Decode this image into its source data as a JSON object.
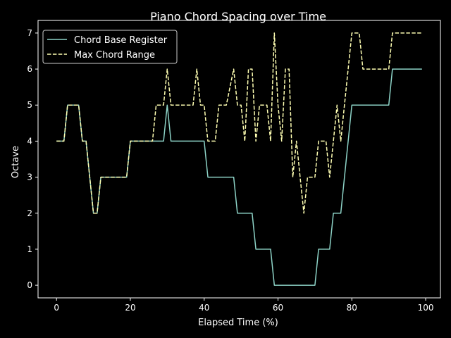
{
  "chart_data": {
    "type": "line",
    "title": "Piano Chord Spacing over Time",
    "xlabel": "Elapsed Time (%)",
    "ylabel": "Octave",
    "xlim": [
      -5,
      104
    ],
    "ylim": [
      -0.35,
      7.35
    ],
    "xticks": [
      0,
      20,
      40,
      60,
      80,
      100
    ],
    "yticks": [
      0,
      1,
      2,
      3,
      4,
      5,
      6,
      7
    ],
    "grid": false,
    "legend": "top-left",
    "background": "#000000",
    "series": [
      {
        "name": "Chord Base Register",
        "color": "#8dd3c7",
        "dash": "solid",
        "x": [
          0,
          2,
          3,
          6,
          7,
          8,
          10,
          11,
          12,
          19,
          20,
          29,
          30,
          31,
          40,
          41,
          48,
          49,
          53,
          54,
          58,
          59,
          70,
          71,
          74,
          75,
          77,
          80,
          90,
          91,
          99
        ],
        "y": [
          4,
          4,
          5,
          5,
          4,
          4,
          2,
          2,
          3,
          3,
          4,
          4,
          5,
          4,
          4,
          3,
          3,
          2,
          2,
          1,
          1,
          0,
          0,
          1,
          1,
          2,
          2,
          5,
          5,
          6,
          6
        ]
      },
      {
        "name": "Max Chord Range",
        "color": "#ffffb3",
        "dash": "dashed",
        "x": [
          0,
          2,
          3,
          6,
          7,
          8,
          10,
          11,
          12,
          19,
          20,
          26,
          27,
          29,
          30,
          31,
          37,
          38,
          39,
          40,
          41,
          43,
          44,
          46,
          48,
          49,
          50,
          51,
          52,
          53,
          54,
          55,
          57,
          58,
          59,
          60,
          61,
          62,
          63,
          64,
          65,
          66,
          67,
          68,
          70,
          71,
          73,
          74,
          75,
          76,
          77,
          78,
          80,
          81,
          82,
          83,
          90,
          91,
          99
        ],
        "y": [
          4,
          4,
          5,
          5,
          4,
          4,
          2,
          2,
          3,
          3,
          4,
          4,
          5,
          5,
          6,
          5,
          5,
          6,
          5,
          5,
          4,
          4,
          5,
          5,
          6,
          5,
          5,
          4,
          6,
          6,
          4,
          5,
          5,
          4,
          7,
          5,
          4,
          6,
          6,
          3,
          4,
          3,
          2,
          3,
          3,
          4,
          4,
          3,
          4,
          5,
          4,
          5,
          7,
          7,
          7,
          6,
          6,
          7,
          7
        ]
      }
    ]
  }
}
